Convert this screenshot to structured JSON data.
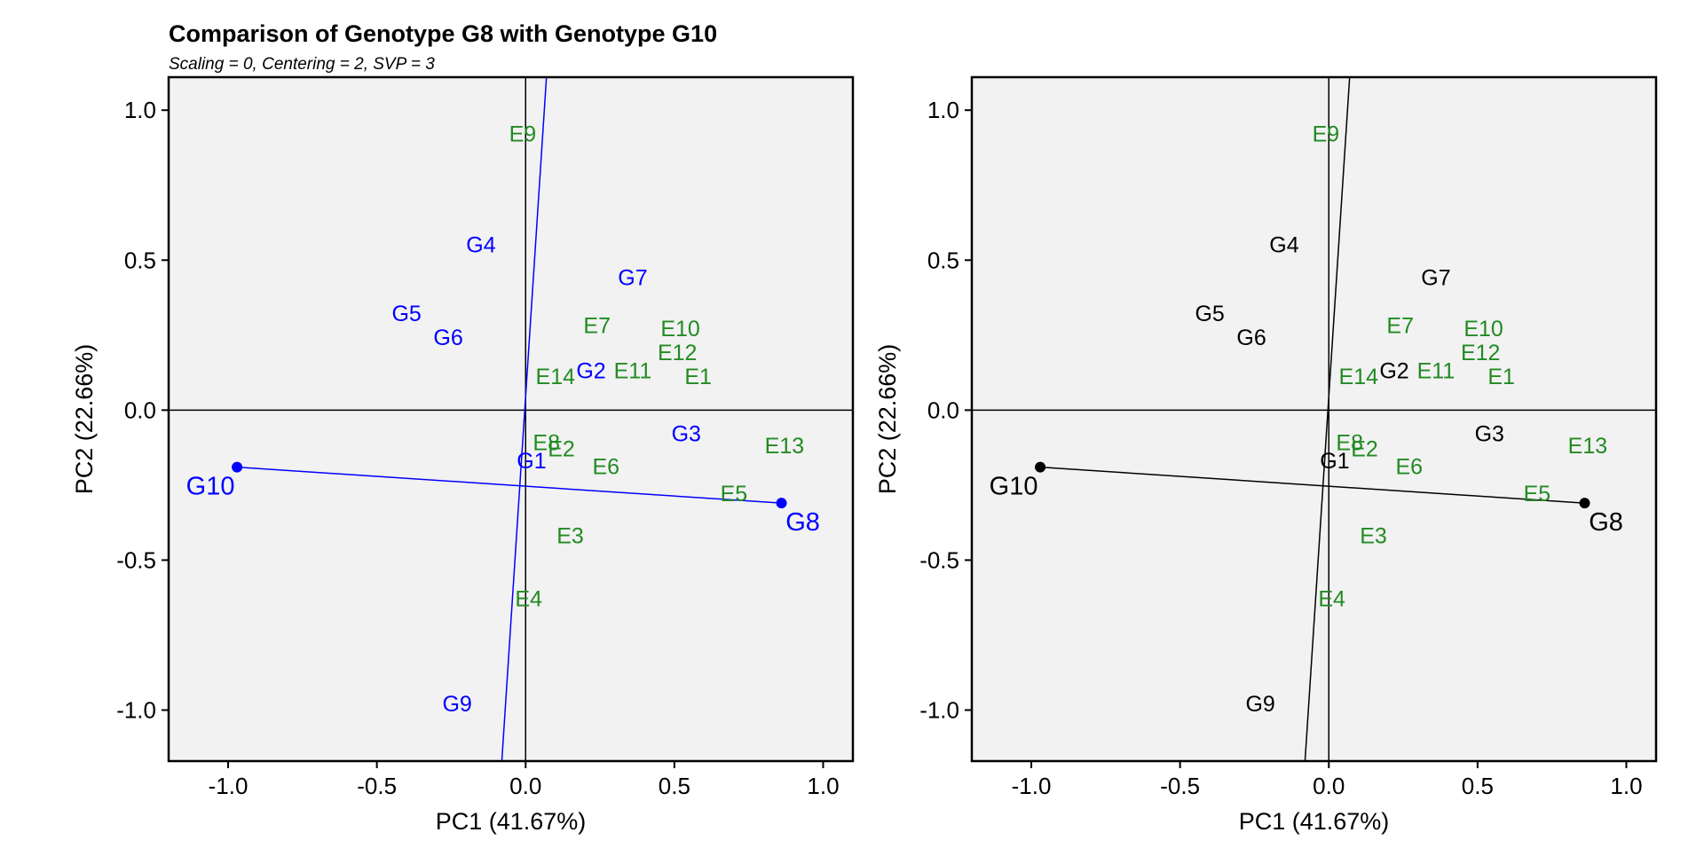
{
  "title": "Comparison of Genotype G8 with Genotype G10",
  "subtitle": "Scaling = 0, Centering = 2, SVP = 3",
  "colors": {
    "panel_bg": "#f2f2f2",
    "environment": "#228b22",
    "genotype_left": "#0000ff",
    "genotype_right": "#000000",
    "axis": "#000000"
  },
  "chart_data": [
    {
      "type": "scatter",
      "panel": "left",
      "xlabel": "PC1 (41.67%)",
      "ylabel": "PC2 (22.66%)",
      "xlim": [
        -1.2,
        1.1
      ],
      "ylim": [
        -1.17,
        1.11
      ],
      "xticks": [
        -1.0,
        -0.5,
        0.0,
        0.5,
        1.0
      ],
      "xtick_labels": [
        "-1.0",
        "-0.5",
        "0.0",
        "0.5",
        "1.0"
      ],
      "yticks": [
        -1.0,
        -0.5,
        0.0,
        0.5,
        1.0
      ],
      "yticks_labels": [
        "-1.0",
        "-0.5",
        "0.0",
        "0.5",
        "1.0"
      ],
      "genotype_color": "#0000ff",
      "genotypes": [
        {
          "label": "G1",
          "x": 0.02,
          "y": -0.17
        },
        {
          "label": "G2",
          "x": 0.22,
          "y": 0.13
        },
        {
          "label": "G3",
          "x": 0.54,
          "y": -0.08
        },
        {
          "label": "G4",
          "x": -0.15,
          "y": 0.55
        },
        {
          "label": "G5",
          "x": -0.4,
          "y": 0.32
        },
        {
          "label": "G6",
          "x": -0.26,
          "y": 0.24
        },
        {
          "label": "G7",
          "x": 0.36,
          "y": 0.44
        },
        {
          "label": "G9",
          "x": -0.23,
          "y": -0.98
        }
      ],
      "environments": [
        {
          "label": "E1",
          "x": 0.58,
          "y": 0.11
        },
        {
          "label": "E2",
          "x": 0.12,
          "y": -0.13
        },
        {
          "label": "E3",
          "x": 0.15,
          "y": -0.42
        },
        {
          "label": "E4",
          "x": 0.01,
          "y": -0.63
        },
        {
          "label": "E5",
          "x": 0.7,
          "y": -0.28
        },
        {
          "label": "E6",
          "x": 0.27,
          "y": -0.19
        },
        {
          "label": "E7",
          "x": 0.24,
          "y": 0.28
        },
        {
          "label": "E8",
          "x": 0.07,
          "y": -0.11
        },
        {
          "label": "E9",
          "x": -0.01,
          "y": 0.92
        },
        {
          "label": "E10",
          "x": 0.52,
          "y": 0.27
        },
        {
          "label": "E11",
          "x": 0.36,
          "y": 0.13
        },
        {
          "label": "E12",
          "x": 0.51,
          "y": 0.19
        },
        {
          "label": "E13",
          "x": 0.87,
          "y": -0.12
        },
        {
          "label": "E14",
          "x": 0.1,
          "y": 0.11
        }
      ],
      "compared": [
        {
          "label": "G8",
          "x": 0.86,
          "y": -0.31
        },
        {
          "label": "G10",
          "x": -0.97,
          "y": -0.19
        }
      ],
      "connector": {
        "from": [
          -0.97,
          -0.19
        ],
        "to": [
          0.86,
          -0.31
        ]
      },
      "perpendicular": {
        "from": [
          -0.08,
          -1.17
        ],
        "to": [
          0.07,
          1.11
        ]
      }
    },
    {
      "type": "scatter",
      "panel": "right",
      "xlabel": "PC1 (41.67%)",
      "ylabel": "PC2 (22.66%)",
      "xlim": [
        -1.2,
        1.1
      ],
      "ylim": [
        -1.17,
        1.11
      ],
      "xticks": [
        -1.0,
        -0.5,
        0.0,
        0.5,
        1.0
      ],
      "xtick_labels": [
        "-1.0",
        "-0.5",
        "0.0",
        "0.5",
        "1.0"
      ],
      "yticks": [
        -1.0,
        -0.5,
        0.0,
        0.5,
        1.0
      ],
      "yticks_labels": [
        "-1.0",
        "-0.5",
        "0.0",
        "0.5",
        "1.0"
      ],
      "genotype_color": "#000000",
      "genotypes": [
        {
          "label": "G1",
          "x": 0.02,
          "y": -0.17
        },
        {
          "label": "G2",
          "x": 0.22,
          "y": 0.13
        },
        {
          "label": "G3",
          "x": 0.54,
          "y": -0.08
        },
        {
          "label": "G4",
          "x": -0.15,
          "y": 0.55
        },
        {
          "label": "G5",
          "x": -0.4,
          "y": 0.32
        },
        {
          "label": "G6",
          "x": -0.26,
          "y": 0.24
        },
        {
          "label": "G7",
          "x": 0.36,
          "y": 0.44
        },
        {
          "label": "G9",
          "x": -0.23,
          "y": -0.98
        }
      ],
      "environments": [
        {
          "label": "E1",
          "x": 0.58,
          "y": 0.11
        },
        {
          "label": "E2",
          "x": 0.12,
          "y": -0.13
        },
        {
          "label": "E3",
          "x": 0.15,
          "y": -0.42
        },
        {
          "label": "E4",
          "x": 0.01,
          "y": -0.63
        },
        {
          "label": "E5",
          "x": 0.7,
          "y": -0.28
        },
        {
          "label": "E6",
          "x": 0.27,
          "y": -0.19
        },
        {
          "label": "E7",
          "x": 0.24,
          "y": 0.28
        },
        {
          "label": "E8",
          "x": 0.07,
          "y": -0.11
        },
        {
          "label": "E9",
          "x": -0.01,
          "y": 0.92
        },
        {
          "label": "E10",
          "x": 0.52,
          "y": 0.27
        },
        {
          "label": "E11",
          "x": 0.36,
          "y": 0.13
        },
        {
          "label": "E12",
          "x": 0.51,
          "y": 0.19
        },
        {
          "label": "E13",
          "x": 0.87,
          "y": -0.12
        },
        {
          "label": "E14",
          "x": 0.1,
          "y": 0.11
        }
      ],
      "compared": [
        {
          "label": "G8",
          "x": 0.86,
          "y": -0.31
        },
        {
          "label": "G10",
          "x": -0.97,
          "y": -0.19
        }
      ],
      "connector": {
        "from": [
          -0.97,
          -0.19
        ],
        "to": [
          0.86,
          -0.31
        ]
      },
      "perpendicular": {
        "from": [
          -0.08,
          -1.17
        ],
        "to": [
          0.07,
          1.11
        ]
      }
    }
  ]
}
